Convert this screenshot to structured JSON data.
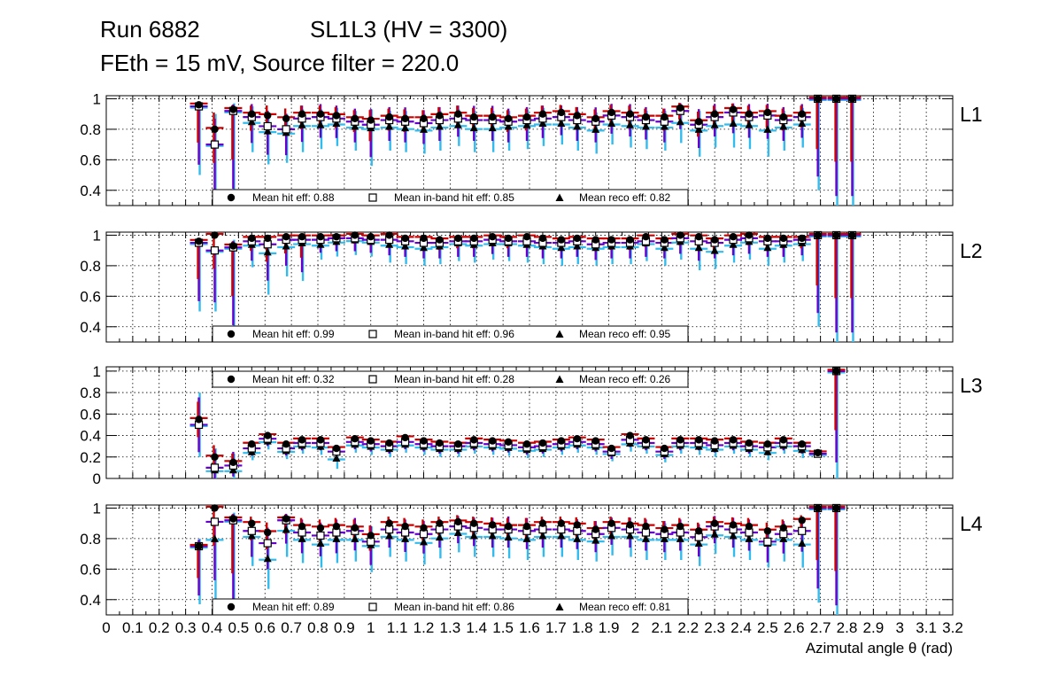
{
  "chart_data": {
    "type": "scatter",
    "title_line1_left": "Run 6882",
    "title_line1_right": "SL1L3 (HV = 3300)",
    "title_line2": "FEth = 15 mV, Source filter = 220.0",
    "xlabel": "Azimutal angle θ (rad)",
    "xlim": [
      0,
      3.2
    ],
    "x_ticks": [
      "0",
      "0.1",
      "0.2",
      "0.3",
      "0.4",
      "0.5",
      "0.6",
      "0.7",
      "0.8",
      "0.9",
      "1",
      "1.1",
      "1.2",
      "1.3",
      "1.4",
      "1.5",
      "1.6",
      "1.7",
      "1.8",
      "1.9",
      "2",
      "2.1",
      "2.2",
      "2.3",
      "2.4",
      "2.5",
      "2.6",
      "2.7",
      "2.8",
      "2.9",
      "3",
      "3.1",
      "3.2"
    ],
    "series_names": [
      "Mean hit  eff",
      "Mean in-band hit eff",
      "Mean reco eff"
    ],
    "colors": {
      "hit": "#cc0000",
      "inband": "#6600cc",
      "reco": "#33bbee",
      "marker": "#000000",
      "grid": "#000000"
    },
    "x": [
      0.35,
      0.41,
      0.48,
      0.55,
      0.61,
      0.68,
      0.74,
      0.81,
      0.87,
      0.94,
      1.0,
      1.07,
      1.13,
      1.2,
      1.26,
      1.33,
      1.39,
      1.46,
      1.52,
      1.59,
      1.65,
      1.72,
      1.78,
      1.85,
      1.91,
      1.98,
      2.04,
      2.11,
      2.17,
      2.24,
      2.3,
      2.37,
      2.43,
      2.5,
      2.56,
      2.63,
      2.69,
      2.76,
      2.82
    ],
    "layers": [
      {
        "name": "L1",
        "ylim": [
          0.3,
          1.02
        ],
        "y_ticks": [
          "0.4",
          "0.6",
          "0.8",
          "1"
        ],
        "legend_pos": "bottom",
        "legend": {
          "hit": "Mean hit  eff: 0.88",
          "inband": "Mean in-band hit eff: 0.85",
          "reco": "Mean reco eff: 0.82"
        },
        "hit": [
          0.96,
          0.8,
          0.93,
          0.9,
          0.89,
          0.87,
          0.9,
          0.9,
          0.89,
          0.87,
          0.86,
          0.88,
          0.87,
          0.87,
          0.89,
          0.9,
          0.88,
          0.88,
          0.87,
          0.88,
          0.9,
          0.91,
          0.89,
          0.87,
          0.91,
          0.9,
          0.88,
          0.88,
          0.94,
          0.85,
          0.9,
          0.93,
          0.9,
          0.91,
          0.88,
          0.9,
          1.0,
          1.0,
          1.0
        ],
        "inband": [
          0.95,
          0.7,
          0.92,
          0.88,
          0.82,
          0.8,
          0.87,
          0.88,
          0.87,
          0.85,
          0.83,
          0.86,
          0.85,
          0.84,
          0.86,
          0.87,
          0.86,
          0.86,
          0.85,
          0.86,
          0.87,
          0.88,
          0.86,
          0.85,
          0.89,
          0.88,
          0.86,
          0.85,
          0.92,
          0.83,
          0.88,
          0.91,
          0.88,
          0.89,
          0.86,
          0.88,
          1.0,
          1.0,
          1.0
        ],
        "reco": [
          0.95,
          0.7,
          0.92,
          0.85,
          0.79,
          0.78,
          0.83,
          0.83,
          0.84,
          0.82,
          0.81,
          0.82,
          0.81,
          0.8,
          0.82,
          0.83,
          0.81,
          0.81,
          0.82,
          0.83,
          0.84,
          0.84,
          0.82,
          0.8,
          0.84,
          0.83,
          0.82,
          0.82,
          0.85,
          0.8,
          0.83,
          0.84,
          0.83,
          0.8,
          0.82,
          0.84,
          1.0,
          1.0,
          1.0
        ],
        "err_up": [
          0.03,
          0.2,
          0.05,
          0.1,
          0.12,
          0.12,
          0.1,
          0.1,
          0.1,
          0.1,
          0.12,
          0.1,
          0.11,
          0.1,
          0.1,
          0.1,
          0.11,
          0.11,
          0.1,
          0.1,
          0.1,
          0.09,
          0.1,
          0.11,
          0.09,
          0.1,
          0.1,
          0.1,
          0.06,
          0.12,
          0.1,
          0.07,
          0.1,
          0.09,
          0.1,
          0.1,
          0.0,
          0.0,
          0.0
        ],
        "err_dn": [
          0.45,
          0.4,
          0.6,
          0.2,
          0.22,
          0.2,
          0.18,
          0.16,
          0.15,
          0.16,
          0.25,
          0.16,
          0.16,
          0.16,
          0.16,
          0.14,
          0.16,
          0.16,
          0.16,
          0.16,
          0.15,
          0.14,
          0.16,
          0.16,
          0.14,
          0.15,
          0.15,
          0.16,
          0.14,
          0.18,
          0.15,
          0.16,
          0.16,
          0.18,
          0.16,
          0.16,
          0.6,
          0.75,
          0.75
        ]
      },
      {
        "name": "L2",
        "ylim": [
          0.3,
          1.02
        ],
        "y_ticks": [
          "0.4",
          "0.6",
          "0.8",
          "1"
        ],
        "legend_pos": "bottom",
        "legend": {
          "hit": "Mean hit  eff: 0.99",
          "inband": "Mean in-band hit eff: 0.96",
          "reco": "Mean reco eff: 0.95"
        },
        "hit": [
          0.96,
          1.0,
          0.93,
          0.98,
          0.98,
          0.99,
          0.99,
          0.99,
          0.99,
          1.0,
          0.99,
          1.0,
          0.98,
          0.98,
          0.97,
          0.98,
          0.98,
          0.99,
          0.98,
          0.99,
          0.98,
          0.97,
          0.98,
          0.97,
          0.97,
          0.97,
          0.99,
          0.97,
          1.0,
          0.99,
          0.97,
          0.99,
          1.0,
          0.98,
          0.98,
          0.98,
          1.0,
          1.0,
          1.0
        ],
        "inband": [
          0.95,
          0.9,
          0.92,
          0.96,
          0.94,
          0.97,
          0.97,
          0.97,
          0.98,
          0.98,
          0.97,
          0.97,
          0.96,
          0.95,
          0.95,
          0.96,
          0.96,
          0.97,
          0.96,
          0.96,
          0.95,
          0.95,
          0.96,
          0.94,
          0.95,
          0.95,
          0.96,
          0.95,
          0.98,
          0.96,
          0.95,
          0.97,
          0.98,
          0.96,
          0.96,
          0.97,
          1.0,
          1.0,
          1.0
        ],
        "reco": [
          0.95,
          0.9,
          0.92,
          0.94,
          0.89,
          0.93,
          0.95,
          0.94,
          0.96,
          0.97,
          0.96,
          0.94,
          0.93,
          0.92,
          0.93,
          0.95,
          0.94,
          0.95,
          0.95,
          0.94,
          0.93,
          0.92,
          0.93,
          0.92,
          0.93,
          0.93,
          0.95,
          0.92,
          0.96,
          0.92,
          0.9,
          0.94,
          0.96,
          0.92,
          0.94,
          0.95,
          1.0,
          1.0,
          1.0
        ],
        "err_up": [
          0.03,
          0.0,
          0.05,
          0.02,
          0.02,
          0.01,
          0.01,
          0.01,
          0.01,
          0.0,
          0.01,
          0.0,
          0.02,
          0.02,
          0.03,
          0.02,
          0.02,
          0.01,
          0.02,
          0.01,
          0.02,
          0.03,
          0.02,
          0.03,
          0.03,
          0.03,
          0.01,
          0.03,
          0.0,
          0.01,
          0.03,
          0.01,
          0.0,
          0.02,
          0.02,
          0.02,
          0.0,
          0.0,
          0.0
        ],
        "err_dn": [
          0.45,
          0.4,
          0.6,
          0.15,
          0.28,
          0.2,
          0.25,
          0.1,
          0.1,
          0.1,
          0.1,
          0.12,
          0.12,
          0.12,
          0.12,
          0.12,
          0.12,
          0.11,
          0.12,
          0.12,
          0.12,
          0.12,
          0.12,
          0.12,
          0.12,
          0.12,
          0.12,
          0.12,
          0.12,
          0.15,
          0.12,
          0.12,
          0.12,
          0.12,
          0.12,
          0.12,
          0.6,
          0.75,
          0.75
        ]
      },
      {
        "name": "L3",
        "ylim": [
          0,
          1.04
        ],
        "y_ticks": [
          "0",
          "0.2",
          "0.4",
          "0.6",
          "0.8",
          "1"
        ],
        "legend_pos": "top",
        "legend": {
          "hit": "Mean hit  eff: 0.32",
          "inband": "Mean in-band hit eff: 0.28",
          "reco": "Mean reco eff: 0.26"
        },
        "hit": [
          0.55,
          0.2,
          0.15,
          0.32,
          0.4,
          0.32,
          0.36,
          0.36,
          0.28,
          0.37,
          0.35,
          0.33,
          0.38,
          0.35,
          0.33,
          0.32,
          0.36,
          0.35,
          0.34,
          0.32,
          0.33,
          0.35,
          0.37,
          0.35,
          0.28,
          0.4,
          0.36,
          0.28,
          0.36,
          0.36,
          0.35,
          0.36,
          0.33,
          0.32,
          0.36,
          0.32,
          0.24,
          1.0,
          null
        ],
        "inband": [
          0.5,
          0.1,
          0.12,
          0.28,
          0.37,
          0.28,
          0.33,
          0.33,
          0.25,
          0.34,
          0.32,
          0.3,
          0.34,
          0.32,
          0.3,
          0.3,
          0.33,
          0.32,
          0.31,
          0.29,
          0.3,
          0.32,
          0.34,
          0.32,
          0.25,
          0.36,
          0.33,
          0.25,
          0.33,
          0.33,
          0.31,
          0.33,
          0.3,
          0.29,
          0.33,
          0.3,
          0.23,
          1.0,
          null
        ],
        "reco": [
          0.5,
          0.08,
          0.08,
          0.25,
          0.35,
          0.26,
          0.31,
          0.3,
          0.19,
          0.32,
          0.3,
          0.28,
          0.32,
          0.3,
          0.28,
          0.28,
          0.31,
          0.3,
          0.29,
          0.27,
          0.28,
          0.3,
          0.32,
          0.3,
          0.24,
          0.33,
          0.31,
          0.23,
          0.31,
          0.3,
          0.28,
          0.31,
          0.28,
          0.25,
          0.31,
          0.27,
          0.23,
          1.0,
          null
        ],
        "err_up": [
          0.3,
          0.2,
          0.15,
          0.05,
          0.05,
          0.05,
          0.05,
          0.05,
          0.05,
          0.05,
          0.05,
          0.05,
          0.05,
          0.05,
          0.05,
          0.05,
          0.05,
          0.05,
          0.05,
          0.05,
          0.05,
          0.05,
          0.05,
          0.05,
          0.05,
          0.05,
          0.05,
          0.05,
          0.05,
          0.05,
          0.05,
          0.05,
          0.05,
          0.05,
          0.05,
          0.05,
          0.03,
          0.0,
          0.0
        ],
        "err_dn": [
          0.3,
          0.12,
          0.12,
          0.08,
          0.08,
          0.08,
          0.08,
          0.08,
          0.1,
          0.08,
          0.08,
          0.08,
          0.08,
          0.08,
          0.08,
          0.08,
          0.08,
          0.08,
          0.08,
          0.08,
          0.08,
          0.08,
          0.08,
          0.08,
          0.08,
          0.08,
          0.08,
          0.08,
          0.08,
          0.08,
          0.08,
          0.08,
          0.08,
          0.08,
          0.08,
          0.08,
          0.03,
          1.0,
          0.0
        ]
      },
      {
        "name": "L4",
        "ylim": [
          0.3,
          1.02
        ],
        "y_ticks": [
          "0.4",
          "0.6",
          "0.8",
          "1"
        ],
        "legend_pos": "bottom",
        "legend": {
          "hit": "Mean hit  eff: 0.89",
          "inband": "Mean in-band hit eff: 0.86",
          "reco": "Mean reco eff: 0.81"
        },
        "hit": [
          0.75,
          1.0,
          0.93,
          0.9,
          0.84,
          0.93,
          0.88,
          0.87,
          0.88,
          0.87,
          0.82,
          0.9,
          0.88,
          0.87,
          0.9,
          0.91,
          0.9,
          0.89,
          0.88,
          0.88,
          0.9,
          0.9,
          0.89,
          0.86,
          0.9,
          0.89,
          0.88,
          0.86,
          0.88,
          0.85,
          0.9,
          0.89,
          0.88,
          0.85,
          0.87,
          0.92,
          1.0,
          1.0,
          null
        ],
        "inband": [
          0.75,
          0.91,
          0.92,
          0.85,
          0.77,
          0.92,
          0.84,
          0.82,
          0.84,
          0.85,
          0.78,
          0.86,
          0.84,
          0.83,
          0.86,
          0.88,
          0.87,
          0.86,
          0.86,
          0.85,
          0.86,
          0.86,
          0.85,
          0.83,
          0.87,
          0.86,
          0.84,
          0.83,
          0.84,
          0.81,
          0.88,
          0.86,
          0.84,
          0.78,
          0.83,
          0.85,
          1.0,
          1.0,
          null
        ],
        "reco": [
          0.75,
          0.8,
          0.92,
          0.82,
          0.67,
          0.86,
          0.8,
          0.77,
          0.8,
          0.8,
          0.76,
          0.82,
          0.8,
          0.78,
          0.81,
          0.84,
          0.82,
          0.82,
          0.81,
          0.8,
          0.82,
          0.82,
          0.8,
          0.79,
          0.82,
          0.82,
          0.8,
          0.8,
          0.8,
          0.77,
          0.83,
          0.82,
          0.8,
          0.77,
          0.8,
          0.77,
          1.0,
          1.0,
          null
        ],
        "err_up": [
          0.05,
          0.0,
          0.05,
          0.08,
          0.12,
          0.05,
          0.1,
          0.1,
          0.1,
          0.1,
          0.12,
          0.08,
          0.1,
          0.1,
          0.08,
          0.08,
          0.08,
          0.09,
          0.1,
          0.1,
          0.08,
          0.08,
          0.09,
          0.1,
          0.08,
          0.09,
          0.1,
          0.1,
          0.1,
          0.1,
          0.08,
          0.09,
          0.1,
          0.1,
          0.1,
          0.06,
          0.0,
          0.0,
          0.0
        ],
        "err_dn": [
          0.38,
          0.45,
          0.65,
          0.2,
          0.2,
          0.18,
          0.16,
          0.16,
          0.16,
          0.15,
          0.18,
          0.14,
          0.15,
          0.15,
          0.14,
          0.13,
          0.14,
          0.14,
          0.14,
          0.14,
          0.14,
          0.14,
          0.14,
          0.14,
          0.13,
          0.14,
          0.14,
          0.14,
          0.14,
          0.15,
          0.13,
          0.14,
          0.14,
          0.16,
          0.15,
          0.16,
          0.62,
          0.75,
          0.75
        ]
      }
    ]
  }
}
